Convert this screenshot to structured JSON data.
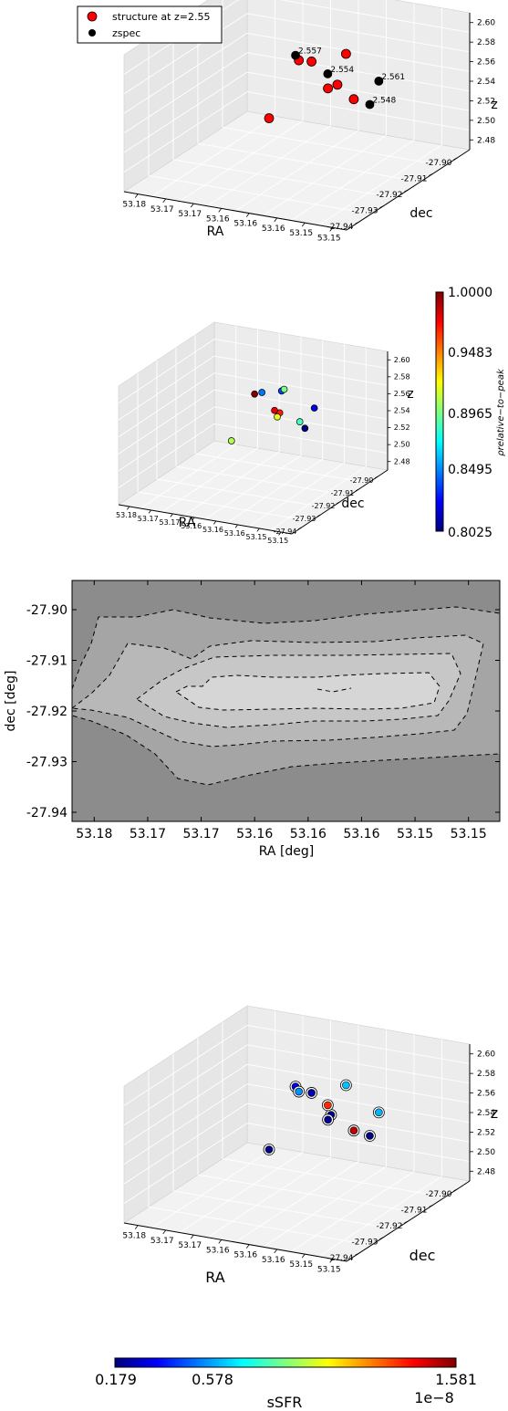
{
  "chart_data": [
    {
      "type": "scatter",
      "subtype": "3d",
      "xlabel": "RA",
      "ylabel": "dec",
      "zlabel": "z",
      "x_ticks": [
        "53.18",
        "53.17",
        "53.17",
        "53.16",
        "53.16",
        "53.16",
        "53.15",
        "53.15"
      ],
      "y_ticks": [
        "-27.94",
        "-27.93",
        "-27.92",
        "-27.91",
        "-27.90"
      ],
      "z_ticks": [
        "2.48",
        "2.50",
        "2.52",
        "2.54",
        "2.56",
        "2.58",
        "2.60"
      ],
      "legend": {
        "position": "top-left",
        "entries": [
          {
            "label": "structure at z=2.55",
            "color": "#ff0000"
          },
          {
            "label": "zspec",
            "color": "#000000"
          }
        ]
      },
      "series": [
        {
          "name": "structure at z=2.55",
          "color": "#ff0000",
          "points": [
            {
              "ra": 53.171,
              "dec": -27.908,
              "z": 2.555
            },
            {
              "ra": 53.169,
              "dec": -27.908,
              "z": 2.556
            },
            {
              "ra": 53.166,
              "dec": -27.903,
              "z": 2.557
            },
            {
              "ra": 53.163,
              "dec": -27.912,
              "z": 2.547
            },
            {
              "ra": 53.164,
              "dec": -27.913,
              "z": 2.544
            },
            {
              "ra": 53.158,
              "dec": -27.917,
              "z": 2.548
            },
            {
              "ra": 53.166,
              "dec": -27.928,
              "z": 2.542
            }
          ]
        },
        {
          "name": "zspec",
          "color": "#000000",
          "points": [
            {
              "ra": 53.172,
              "dec": -27.907,
              "z": 2.557,
              "label": "2.557"
            },
            {
              "ra": 53.165,
              "dec": -27.911,
              "z": 2.554,
              "label": "2.554"
            },
            {
              "ra": 53.156,
              "dec": -27.913,
              "z": 2.561,
              "label": "2.561"
            },
            {
              "ra": 53.155,
              "dec": -27.918,
              "z": 2.548,
              "label": "2.548"
            }
          ]
        }
      ]
    },
    {
      "type": "scatter",
      "subtype": "3d",
      "xlabel": "RA",
      "ylabel": "dec",
      "zlabel": "z",
      "x_ticks": [
        "53.18",
        "53.17",
        "53.17",
        "53.16",
        "53.16",
        "53.16",
        "53.15",
        "53.15"
      ],
      "y_ticks": [
        "-27.94",
        "-27.93",
        "-27.92",
        "-27.91",
        "-27.90"
      ],
      "z_ticks": [
        "2.48",
        "2.50",
        "2.52",
        "2.54",
        "2.56",
        "2.58",
        "2.60"
      ],
      "colorbar": {
        "label": "ρrelative−to−peak",
        "ticks": [
          "0.8025",
          "0.8495",
          "0.8965",
          "0.9483",
          "1.0000"
        ],
        "range": [
          0.8025,
          1.0
        ],
        "colormap": "jet"
      },
      "points": [
        {
          "ra": 53.171,
          "dec": -27.908,
          "z": 2.555,
          "rho": 1.0
        },
        {
          "ra": 53.17,
          "dec": -27.907,
          "z": 2.556,
          "rho": 0.85
        },
        {
          "ra": 53.167,
          "dec": -27.905,
          "z": 2.557,
          "rho": 0.84
        },
        {
          "ra": 53.166,
          "dec": -27.906,
          "z": 2.562,
          "rho": 0.9
        },
        {
          "ra": 53.164,
          "dec": -27.912,
          "z": 2.547,
          "rho": 0.97
        },
        {
          "ra": 53.164,
          "dec": -27.913,
          "z": 2.544,
          "rho": 0.92
        },
        {
          "ra": 53.166,
          "dec": -27.91,
          "z": 2.544,
          "rho": 0.98
        },
        {
          "ra": 53.158,
          "dec": -27.916,
          "z": 2.55,
          "rho": 0.89
        },
        {
          "ra": 53.157,
          "dec": -27.912,
          "z": 2.56,
          "rho": 0.82
        },
        {
          "ra": 53.156,
          "dec": -27.918,
          "z": 2.548,
          "rho": 0.8
        },
        {
          "ra": 53.166,
          "dec": -27.928,
          "z": 2.542,
          "rho": 0.91
        }
      ]
    },
    {
      "type": "contour",
      "xlabel": "RA [deg]",
      "ylabel": "dec [deg]",
      "x_ticks": [
        "53.18",
        "53.17",
        "53.17",
        "53.16",
        "53.16",
        "53.16",
        "53.15",
        "53.15"
      ],
      "y_ticks": [
        "-27.90",
        "-27.91",
        "-27.92",
        "-27.93",
        "-27.94"
      ],
      "levels": 4,
      "fill_colors": [
        "#8c8c8c",
        "#a5a5a5",
        "#b8b8b8",
        "#c7c7c7",
        "#d6d6d6"
      ]
    },
    {
      "type": "scatter",
      "subtype": "3d",
      "xlabel": "RA",
      "ylabel": "dec",
      "zlabel": "z",
      "x_ticks": [
        "53.18",
        "53.17",
        "53.17",
        "53.16",
        "53.16",
        "53.16",
        "53.15",
        "53.15"
      ],
      "y_ticks": [
        "-27.94",
        "-27.93",
        "-27.92",
        "-27.91",
        "-27.90"
      ],
      "z_ticks": [
        "2.48",
        "2.50",
        "2.52",
        "2.54",
        "2.56",
        "2.58",
        "2.60"
      ],
      "colorbar": {
        "label": "sSFR",
        "ticks": [
          "0.179",
          "0.578",
          "1.581"
        ],
        "multiplier": "1e−8",
        "range": [
          0.179,
          1.581
        ],
        "colormap": "jet"
      },
      "points": [
        {
          "ra": 53.172,
          "dec": -27.907,
          "z": 2.557,
          "ssfr": 0.35
        },
        {
          "ra": 53.171,
          "dec": -27.908,
          "z": 2.555,
          "ssfr": 0.55
        },
        {
          "ra": 53.169,
          "dec": -27.908,
          "z": 2.556,
          "ssfr": 0.25
        },
        {
          "ra": 53.166,
          "dec": -27.903,
          "z": 2.557,
          "ssfr": 0.62
        },
        {
          "ra": 53.164,
          "dec": -27.912,
          "z": 2.547,
          "ssfr": 0.2
        },
        {
          "ra": 53.164,
          "dec": -27.913,
          "z": 2.544,
          "ssfr": 0.21
        },
        {
          "ra": 53.165,
          "dec": -27.911,
          "z": 2.554,
          "ssfr": 1.35
        },
        {
          "ra": 53.158,
          "dec": -27.917,
          "z": 2.548,
          "ssfr": 1.5
        },
        {
          "ra": 53.156,
          "dec": -27.913,
          "z": 2.561,
          "ssfr": 0.6
        },
        {
          "ra": 53.155,
          "dec": -27.918,
          "z": 2.548,
          "ssfr": 0.18
        },
        {
          "ra": 53.166,
          "dec": -27.928,
          "z": 2.542,
          "ssfr": 0.19
        }
      ]
    }
  ]
}
